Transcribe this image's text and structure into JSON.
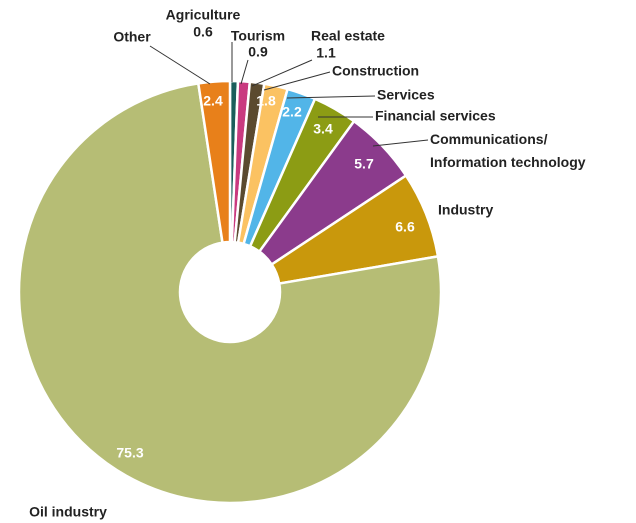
{
  "chart_data": {
    "type": "pie",
    "categories": [
      "Agriculture",
      "Tourism",
      "Real estate",
      "Construction",
      "Services",
      "Financial services",
      "Communications/\nInformation technology",
      "Industry",
      "Oil industry",
      "Other"
    ],
    "values": [
      0.6,
      0.9,
      1.1,
      1.8,
      2.2,
      3.4,
      5.7,
      6.6,
      75.3,
      2.4
    ],
    "colors": [
      "#1b5e5b",
      "#c93a7f",
      "#5b4a2f",
      "#fbc262",
      "#52b5e8",
      "#8c9c14",
      "#8b3b8c",
      "#c9980c",
      "#b6bd75",
      "#e8801a"
    ]
  }
}
